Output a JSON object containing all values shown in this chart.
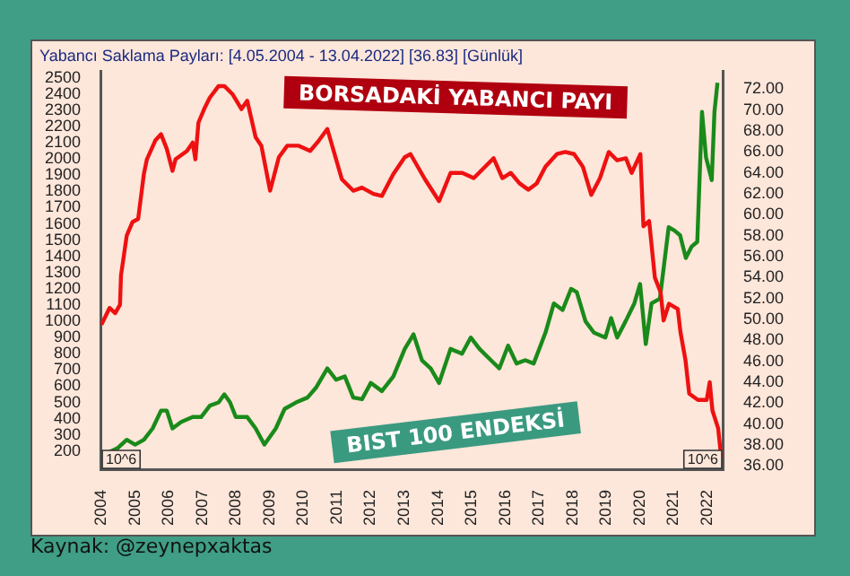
{
  "chart_data": {
    "type": "line",
    "title": "Yabancı Saklama Payları: [4.05.2004 - 13.04.2022] [36.83] [Günlük]",
    "marker": "none",
    "xlim": [
      2003.97,
      2022.48
    ],
    "xticks": [
      2004,
      2005,
      2006,
      2007,
      2008,
      2009,
      2010,
      2011,
      2012,
      2013,
      2014,
      2015,
      2016,
      2017,
      2018,
      2019,
      2020,
      2021,
      2022
    ],
    "ylim": [
      83,
      2540
    ],
    "yticks": [
      200,
      300,
      400,
      500,
      600,
      700,
      800,
      900,
      1000,
      1100,
      1200,
      1300,
      1400,
      1500,
      1600,
      1700,
      1800,
      1900,
      2000,
      2100,
      2200,
      2300,
      2400,
      2500
    ],
    "y2lim": [
      35.6,
      73.7
    ],
    "y2ticks": [
      {
        "value": 36,
        "label": "36.00"
      },
      {
        "value": 38,
        "label": "38.00"
      },
      {
        "value": 40,
        "label": "40.00"
      },
      {
        "value": 42,
        "label": "42.00"
      },
      {
        "value": 44,
        "label": "44.00"
      },
      {
        "value": 46,
        "label": "46.00"
      },
      {
        "value": 48,
        "label": "48.00"
      },
      {
        "value": 50,
        "label": "50.00"
      },
      {
        "value": 52,
        "label": "52.00"
      },
      {
        "value": 54,
        "label": "54.00"
      },
      {
        "value": 56,
        "label": "56.00"
      },
      {
        "value": 58,
        "label": "58.00"
      },
      {
        "value": 60,
        "label": "60.00"
      },
      {
        "value": 62,
        "label": "62.00"
      },
      {
        "value": 64,
        "label": "64.00"
      },
      {
        "value": 66,
        "label": "66.00"
      },
      {
        "value": 68,
        "label": "68.00"
      },
      {
        "value": 70,
        "label": "70.00"
      },
      {
        "value": 72,
        "label": "72.00"
      }
    ],
    "series": [
      {
        "name": "BORSADAKİ YABANCI PAYI",
        "color": "#ee1111",
        "axis": "y2",
        "x": [
          2004.0,
          2004.24,
          2004.41,
          2004.55,
          2004.58,
          2004.75,
          2004.92,
          2005.09,
          2005.26,
          2005.35,
          2005.6,
          2005.77,
          2005.94,
          2006.11,
          2006.2,
          2006.54,
          2006.71,
          2006.79,
          2006.88,
          2007.05,
          2007.22,
          2007.48,
          2007.65,
          2007.9,
          2008.16,
          2008.33,
          2008.58,
          2008.75,
          2009.01,
          2009.27,
          2009.52,
          2009.86,
          2010.2,
          2010.46,
          2010.71,
          2011.14,
          2011.48,
          2011.74,
          2012.08,
          2012.33,
          2012.67,
          2013.01,
          2013.18,
          2013.61,
          2014.03,
          2014.37,
          2014.72,
          2015.06,
          2015.4,
          2015.65,
          2015.91,
          2016.16,
          2016.42,
          2016.68,
          2016.93,
          2017.19,
          2017.53,
          2017.78,
          2018.04,
          2018.3,
          2018.55,
          2018.81,
          2019.07,
          2019.32,
          2019.58,
          2019.75,
          2020.01,
          2020.1,
          2020.27,
          2020.44,
          2020.61,
          2020.7,
          2020.86,
          2021.12,
          2021.2,
          2021.35,
          2021.46,
          2021.72,
          2021.98,
          2022.07,
          2022.15,
          2022.32,
          2022.41
        ],
        "values": [
          49.5,
          51.1,
          50.6,
          51.4,
          54.2,
          58.0,
          59.3,
          59.6,
          63.9,
          65.3,
          67.1,
          67.7,
          66.3,
          64.2,
          65.3,
          66.1,
          66.9,
          65.3,
          68.8,
          70.1,
          71.2,
          72.3,
          72.3,
          71.5,
          70.1,
          70.9,
          67.4,
          66.6,
          62.3,
          65.5,
          66.6,
          66.6,
          66.1,
          67.1,
          68.2,
          63.4,
          62.3,
          62.6,
          62.0,
          61.8,
          63.9,
          65.5,
          65.8,
          63.4,
          61.3,
          64.0,
          64.0,
          63.5,
          64.6,
          65.4,
          63.5,
          64.0,
          63.0,
          62.4,
          63.0,
          64.6,
          65.8,
          66.0,
          65.8,
          64.6,
          61.9,
          63.5,
          66.0,
          65.2,
          65.4,
          64.0,
          65.8,
          58.9,
          59.4,
          54.0,
          52.6,
          49.9,
          51.5,
          51.0,
          48.8,
          46.1,
          42.9,
          42.3,
          42.3,
          44.0,
          41.3,
          39.6,
          36.8
        ]
      },
      {
        "name": "BIST 100 ENDEKSİ",
        "color": "#1a8a1a",
        "x": [
          2004.0,
          2004.49,
          2004.75,
          2005.0,
          2005.26,
          2005.52,
          2005.77,
          2005.94,
          2006.11,
          2006.37,
          2006.71,
          2006.96,
          2007.22,
          2007.48,
          2007.65,
          2007.82,
          2007.99,
          2008.33,
          2008.58,
          2008.84,
          2009.18,
          2009.44,
          2009.78,
          2010.12,
          2010.37,
          2010.71,
          2010.97,
          2011.23,
          2011.48,
          2011.74,
          2012.0,
          2012.33,
          2012.67,
          2013.01,
          2013.27,
          2013.52,
          2013.78,
          2014.03,
          2014.37,
          2014.71,
          2014.97,
          2015.23,
          2015.57,
          2015.82,
          2016.08,
          2016.33,
          2016.59,
          2016.84,
          2017.19,
          2017.44,
          2017.7,
          2017.95,
          2018.12,
          2018.38,
          2018.63,
          2018.97,
          2019.14,
          2019.32,
          2019.57,
          2019.83,
          2020.0,
          2020.17,
          2020.34,
          2020.59,
          2020.85,
          2021.02,
          2021.19,
          2021.36,
          2021.53,
          2021.7,
          2021.84,
          2021.96,
          2022.13,
          2022.21,
          2022.3
        ],
        "values": [
          170,
          220,
          270,
          240,
          270,
          340,
          450,
          450,
          340,
          380,
          410,
          410,
          480,
          500,
          550,
          500,
          410,
          410,
          340,
          240,
          340,
          460,
          500,
          530,
          590,
          710,
          640,
          660,
          530,
          520,
          620,
          570,
          660,
          830,
          920,
          760,
          710,
          620,
          830,
          800,
          900,
          830,
          760,
          710,
          850,
          740,
          760,
          740,
          930,
          1110,
          1070,
          1200,
          1180,
          1000,
          930,
          900,
          1020,
          900,
          1000,
          1110,
          1230,
          860,
          1110,
          1140,
          1580,
          1560,
          1530,
          1390,
          1460,
          1490,
          2290,
          2010,
          1870,
          2290,
          2470
        ]
      }
    ],
    "annotations": [
      "10^6",
      "10^6",
      "Kaynak: @zeynepxaktas"
    ]
  }
}
